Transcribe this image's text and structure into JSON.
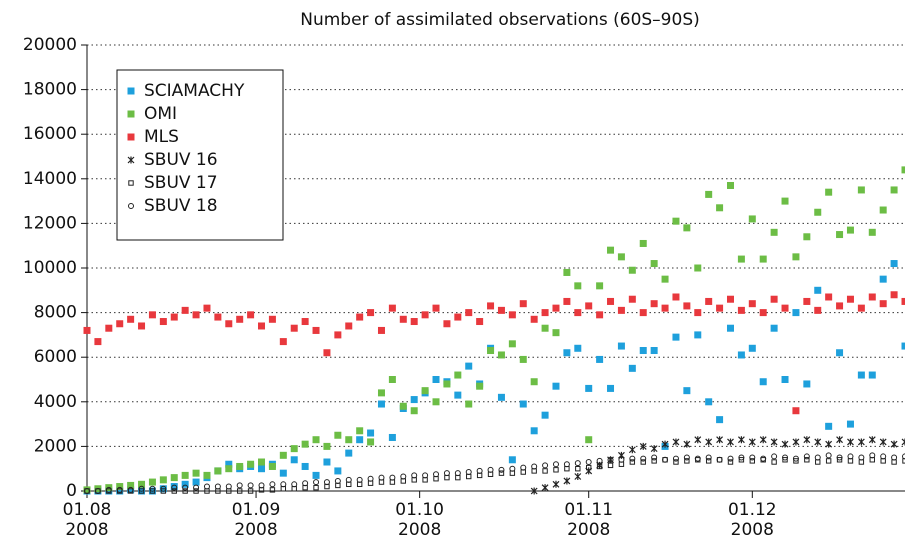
{
  "chart_data": {
    "type": "scatter",
    "title": "Number of assimilated observations (60S–90S)",
    "x": [
      "2008-08-01",
      "2008-08-03",
      "2008-08-05",
      "2008-08-07",
      "2008-08-09",
      "2008-08-11",
      "2008-08-13",
      "2008-08-15",
      "2008-08-17",
      "2008-08-19",
      "2008-08-21",
      "2008-08-23",
      "2008-08-25",
      "2008-08-27",
      "2008-08-29",
      "2008-08-31",
      "2008-09-02",
      "2008-09-04",
      "2008-09-06",
      "2008-09-08",
      "2008-09-10",
      "2008-09-12",
      "2008-09-14",
      "2008-09-16",
      "2008-09-18",
      "2008-09-20",
      "2008-09-22",
      "2008-09-24",
      "2008-09-26",
      "2008-09-28",
      "2008-09-30",
      "2008-10-02",
      "2008-10-04",
      "2008-10-06",
      "2008-10-08",
      "2008-10-10",
      "2008-10-12",
      "2008-10-14",
      "2008-10-16",
      "2008-10-18",
      "2008-10-20",
      "2008-10-22",
      "2008-10-24",
      "2008-10-26",
      "2008-10-28",
      "2008-10-30",
      "2008-11-01",
      "2008-11-03",
      "2008-11-05",
      "2008-11-07",
      "2008-11-09",
      "2008-11-11",
      "2008-11-13",
      "2008-11-15",
      "2008-11-17",
      "2008-11-19",
      "2008-11-21",
      "2008-11-23",
      "2008-11-25",
      "2008-11-27",
      "2008-11-29",
      "2008-12-01",
      "2008-12-03",
      "2008-12-05",
      "2008-12-07",
      "2008-12-09",
      "2008-12-11",
      "2008-12-13",
      "2008-12-15",
      "2008-12-17",
      "2008-12-19",
      "2008-12-21",
      "2008-12-23",
      "2008-12-25",
      "2008-12-27",
      "2008-12-29"
    ],
    "series": [
      {
        "name": "SCIAMACHY",
        "color": "#1ea0dc",
        "marker": "square",
        "values": [
          0,
          0,
          0,
          0,
          50,
          0,
          0,
          100,
          200,
          300,
          400,
          600,
          900,
          1200,
          1000,
          1100,
          1000,
          1200,
          800,
          1400,
          1100,
          700,
          1300,
          900,
          1700,
          2300,
          2600,
          3900,
          2400,
          3700,
          4100,
          4400,
          5000,
          4900,
          4300,
          5600,
          4800,
          6400,
          4200,
          1400,
          3900,
          2700,
          3400,
          4700,
          6200,
          6400,
          4600,
          5900,
          4600,
          6500,
          5500,
          6300,
          6300,
          2000,
          6900,
          4500,
          7000,
          4000,
          3200,
          7300,
          6100,
          6400,
          4900,
          7300,
          5000,
          8000,
          4800,
          9000,
          2900,
          6200,
          3000,
          5200,
          5200,
          9500,
          10200,
          6500
        ]
      },
      {
        "name": "OMI",
        "color": "#6cbd45",
        "marker": "square",
        "values": [
          50,
          100,
          150,
          200,
          250,
          300,
          400,
          500,
          600,
          700,
          800,
          700,
          900,
          1000,
          1100,
          1200,
          1300,
          1100,
          1600,
          1900,
          2100,
          2300,
          2000,
          2500,
          2300,
          2700,
          2200,
          4400,
          5000,
          3800,
          3600,
          4500,
          4000,
          4800,
          5200,
          3900,
          4700,
          6300,
          6100,
          6600,
          5900,
          4900,
          7300,
          7100,
          9800,
          9200,
          2300,
          9200,
          10800,
          10500,
          9900,
          11100,
          10200,
          9500,
          12100,
          11800,
          10000,
          13300,
          12700,
          13700,
          10400,
          12200,
          10400,
          11600,
          13000,
          10500,
          11400,
          12500,
          13400,
          11500,
          11700,
          13500,
          11600,
          12600,
          13500,
          14400
        ]
      },
      {
        "name": "MLS",
        "color": "#e8383d",
        "marker": "square",
        "values": [
          7200,
          6700,
          7300,
          7500,
          7700,
          7400,
          7900,
          7600,
          7800,
          8100,
          7900,
          8200,
          7800,
          7500,
          7700,
          7900,
          7400,
          7700,
          6700,
          7300,
          7600,
          7200,
          6200,
          7000,
          7400,
          7800,
          8000,
          7200,
          8200,
          7700,
          7600,
          7900,
          8200,
          7500,
          7800,
          8000,
          7600,
          8300,
          8100,
          7900,
          8400,
          7700,
          8000,
          8200,
          8500,
          8000,
          8300,
          7900,
          8500,
          8100,
          8600,
          8000,
          8400,
          8200,
          8700,
          8300,
          8000,
          8500,
          8200,
          8600,
          8100,
          8400,
          8000,
          8600,
          8200,
          3600,
          8500,
          8100,
          8700,
          8300,
          8600,
          8200,
          8700,
          8400,
          8800,
          8500
        ]
      },
      {
        "name": "SBUV 16",
        "color": "#222222",
        "marker": "cross",
        "values": [
          null,
          null,
          null,
          null,
          null,
          null,
          null,
          null,
          null,
          null,
          null,
          null,
          null,
          null,
          null,
          null,
          null,
          null,
          null,
          null,
          null,
          null,
          null,
          null,
          null,
          null,
          null,
          null,
          null,
          null,
          null,
          null,
          null,
          null,
          null,
          null,
          null,
          null,
          null,
          null,
          null,
          0,
          150,
          300,
          450,
          650,
          900,
          1150,
          1400,
          1600,
          1850,
          2000,
          1900,
          2100,
          2200,
          2100,
          2300,
          2200,
          2300,
          2200,
          2300,
          2200,
          2300,
          2200,
          2100,
          2200,
          2300,
          2200,
          2100,
          2300,
          2200,
          2200,
          2300,
          2200,
          2100,
          2200
        ]
      },
      {
        "name": "SBUV 17",
        "color": "#222222",
        "marker": "open-square",
        "values": [
          0,
          0,
          0,
          0,
          0,
          0,
          0,
          0,
          0,
          0,
          0,
          0,
          0,
          0,
          0,
          0,
          50,
          50,
          100,
          100,
          150,
          150,
          200,
          250,
          300,
          300,
          350,
          400,
          400,
          450,
          500,
          500,
          550,
          600,
          600,
          650,
          700,
          750,
          800,
          800,
          850,
          900,
          900,
          950,
          1000,
          1000,
          1050,
          1100,
          1150,
          1200,
          1300,
          1300,
          1350,
          1400,
          1300,
          1350,
          1400,
          1350,
          1400,
          1300,
          1400,
          1350,
          1400,
          1300,
          1400,
          1350,
          1400,
          1300,
          1350,
          1400,
          1350,
          1300,
          1400,
          1350,
          1300,
          1350
        ]
      },
      {
        "name": "SBUV 18",
        "color": "#222222",
        "marker": "open-circle",
        "values": [
          0,
          0,
          50,
          50,
          50,
          100,
          100,
          100,
          150,
          150,
          150,
          200,
          200,
          200,
          250,
          250,
          250,
          300,
          300,
          300,
          350,
          400,
          400,
          450,
          500,
          500,
          550,
          600,
          600,
          650,
          700,
          700,
          750,
          800,
          800,
          850,
          900,
          950,
          950,
          1000,
          1050,
          1100,
          1150,
          1200,
          1200,
          1250,
          1300,
          1350,
          1400,
          1400,
          1450,
          1450,
          1500,
          1400,
          1450,
          1500,
          1450,
          1500,
          1400,
          1450,
          1500,
          1500,
          1450,
          1550,
          1500,
          1450,
          1550,
          1500,
          1600,
          1500,
          1550,
          1500,
          1600,
          1550,
          1500,
          1550
        ]
      }
    ],
    "xlim": [
      "2008-08-01",
      "2008-12-29"
    ],
    "xticks": [
      {
        "value": "2008-08-01",
        "label": "01.08\n2008"
      },
      {
        "value": "2008-09-01",
        "label": "01.09\n2008"
      },
      {
        "value": "2008-10-01",
        "label": "01.10\n2008"
      },
      {
        "value": "2008-11-01",
        "label": "01.11\n2008"
      },
      {
        "value": "2008-12-01",
        "label": "01.12\n2008"
      }
    ],
    "ylim": [
      0,
      20000
    ],
    "yticks": [
      0,
      2000,
      4000,
      6000,
      8000,
      10000,
      12000,
      14000,
      16000,
      18000,
      20000
    ],
    "grid": true,
    "legend": "upper left"
  }
}
